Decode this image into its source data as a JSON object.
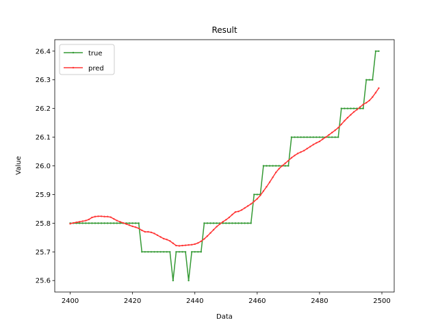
{
  "chart_data": {
    "type": "line",
    "title": "Result",
    "xlabel": "Data",
    "ylabel": "Value",
    "x": [
      2400,
      2401,
      2402,
      2403,
      2404,
      2405,
      2406,
      2407,
      2408,
      2409,
      2410,
      2411,
      2412,
      2413,
      2414,
      2415,
      2416,
      2417,
      2418,
      2419,
      2420,
      2421,
      2422,
      2423,
      2424,
      2425,
      2426,
      2427,
      2428,
      2429,
      2430,
      2431,
      2432,
      2433,
      2434,
      2435,
      2436,
      2437,
      2438,
      2439,
      2440,
      2441,
      2442,
      2443,
      2444,
      2445,
      2446,
      2447,
      2448,
      2449,
      2450,
      2451,
      2452,
      2453,
      2454,
      2455,
      2456,
      2457,
      2458,
      2459,
      2460,
      2461,
      2462,
      2463,
      2464,
      2465,
      2466,
      2467,
      2468,
      2469,
      2470,
      2471,
      2472,
      2473,
      2474,
      2475,
      2476,
      2477,
      2478,
      2479,
      2480,
      2481,
      2482,
      2483,
      2484,
      2485,
      2486,
      2487,
      2488,
      2489,
      2490,
      2491,
      2492,
      2493,
      2494,
      2495,
      2496,
      2497,
      2498,
      2499
    ],
    "series": [
      {
        "name": "true",
        "color": "#339933",
        "values": [
          25.8,
          25.8,
          25.8,
          25.8,
          25.8,
          25.8,
          25.8,
          25.8,
          25.8,
          25.8,
          25.8,
          25.8,
          25.8,
          25.8,
          25.8,
          25.8,
          25.8,
          25.8,
          25.8,
          25.8,
          25.8,
          25.8,
          25.8,
          25.7,
          25.7,
          25.7,
          25.7,
          25.7,
          25.7,
          25.7,
          25.7,
          25.7,
          25.7,
          25.6,
          25.7,
          25.7,
          25.7,
          25.7,
          25.6,
          25.7,
          25.7,
          25.7,
          25.7,
          25.8,
          25.8,
          25.8,
          25.8,
          25.8,
          25.8,
          25.8,
          25.8,
          25.8,
          25.8,
          25.8,
          25.8,
          25.8,
          25.8,
          25.8,
          25.8,
          25.9,
          25.9,
          25.9,
          26.0,
          26.0,
          26.0,
          26.0,
          26.0,
          26.0,
          26.0,
          26.0,
          26.0,
          26.1,
          26.1,
          26.1,
          26.1,
          26.1,
          26.1,
          26.1,
          26.1,
          26.1,
          26.1,
          26.1,
          26.1,
          26.1,
          26.1,
          26.1,
          26.1,
          26.2,
          26.2,
          26.2,
          26.2,
          26.2,
          26.2,
          26.2,
          26.2,
          26.3,
          26.3,
          26.3,
          26.4,
          26.4
        ]
      },
      {
        "name": "pred",
        "color": "#ff3333",
        "values": [
          25.798,
          25.801,
          25.803,
          25.805,
          25.807,
          25.809,
          25.813,
          25.82,
          25.823,
          25.824,
          25.824,
          25.823,
          25.823,
          25.821,
          25.815,
          25.809,
          25.805,
          25.801,
          25.797,
          25.793,
          25.789,
          25.786,
          25.782,
          25.775,
          25.77,
          25.77,
          25.768,
          25.764,
          25.758,
          25.752,
          25.746,
          25.743,
          25.738,
          25.73,
          25.722,
          25.721,
          25.722,
          25.723,
          25.724,
          25.725,
          25.727,
          25.731,
          25.737,
          25.745,
          25.755,
          25.766,
          25.777,
          25.788,
          25.797,
          25.805,
          25.812,
          25.82,
          25.83,
          25.839,
          25.841,
          25.846,
          25.853,
          25.86,
          25.867,
          25.876,
          25.885,
          25.897,
          25.912,
          25.927,
          25.943,
          25.96,
          25.977,
          25.99,
          26.0,
          26.009,
          26.018,
          26.028,
          26.036,
          26.043,
          26.048,
          26.053,
          26.06,
          26.067,
          26.074,
          26.08,
          26.085,
          26.093,
          26.1,
          26.108,
          26.116,
          26.124,
          26.133,
          26.145,
          26.157,
          26.168,
          26.178,
          26.188,
          26.196,
          26.205,
          26.214,
          26.22,
          26.228,
          26.24,
          26.255,
          26.271
        ]
      }
    ],
    "xlim": [
      2395.05,
      2503.95
    ],
    "xticks": [
      2400,
      2420,
      2440,
      2460,
      2480,
      2500
    ],
    "ylim": [
      25.56,
      26.44
    ],
    "yticks": [
      25.6,
      25.7,
      25.8,
      25.9,
      {
        "value": 26,
        "label": "26.0"
      },
      26.1,
      26.2,
      26.3,
      26.4
    ],
    "legend": "upper left"
  }
}
